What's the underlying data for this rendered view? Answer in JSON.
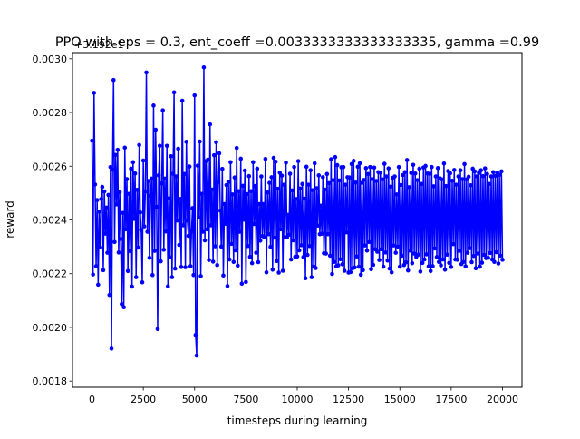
{
  "chart_data": {
    "type": "line",
    "title": "PPO with eps = 0.3, ent_coeff =0.0033333333333333335, gamma =0.99",
    "xlabel": "timesteps during learning",
    "ylabel": "reward",
    "offset_label": "+3.192e1",
    "xlim": [
      -950,
      20950
    ],
    "ylim": [
      0.001777,
      0.003023
    ],
    "xticks": [
      0,
      2500,
      5000,
      7500,
      10000,
      12500,
      15000,
      17500,
      20000
    ],
    "xtick_labels": [
      "0",
      "2500",
      "5000",
      "7500",
      "10000",
      "12500",
      "15000",
      "17500",
      "20000"
    ],
    "yticks": [
      0.0018,
      0.002,
      0.0022,
      0.0024,
      0.0026,
      0.0028,
      0.003
    ],
    "ytick_labels": [
      "0.0018",
      "0.0020",
      "0.0022",
      "0.0024",
      "0.0026",
      "0.0028",
      "0.0030"
    ],
    "grid": false,
    "legend": "none",
    "series": [
      {
        "color": "#0000ff",
        "marker": "circle",
        "x_start": 0,
        "x_step": 50,
        "values": [
          0.002695,
          0.002197,
          0.002873,
          0.002532,
          0.002228,
          0.002474,
          0.002159,
          0.002431,
          0.002298,
          0.002478,
          0.002523,
          0.002213,
          0.002506,
          0.002349,
          0.002446,
          0.002278,
          0.002493,
          0.002121,
          0.002597,
          0.001921,
          0.002587,
          0.002921,
          0.002318,
          0.002642,
          0.002458,
          0.002661,
          0.002279,
          0.002503,
          0.002329,
          0.002087,
          0.002426,
          0.002075,
          0.002669,
          0.002365,
          0.002552,
          0.00221,
          0.002497,
          0.002284,
          0.002591,
          0.002152,
          0.002615,
          0.002404,
          0.002573,
          0.002187,
          0.002512,
          0.002297,
          0.002679,
          0.002428,
          0.002363,
          0.002168,
          0.002621,
          0.002376,
          0.002506,
          0.002949,
          0.002356,
          0.002545,
          0.002259,
          0.00249,
          0.002554,
          0.002195,
          0.002826,
          0.002285,
          0.002736,
          0.002449,
          0.001994,
          0.002566,
          0.002676,
          0.002246,
          0.002536,
          0.002808,
          0.002289,
          0.002554,
          0.002357,
          0.002676,
          0.002153,
          0.00248,
          0.002261,
          0.002637,
          0.002187,
          0.002572,
          0.002875,
          0.002219,
          0.002562,
          0.002398,
          0.002665,
          0.002307,
          0.002478,
          0.002225,
          0.002844,
          0.00238,
          0.002571,
          0.002224,
          0.002691,
          0.002398,
          0.002341,
          0.002599,
          0.002228,
          0.002359,
          0.002444,
          0.002195,
          0.002864,
          0.001972,
          0.001895,
          0.002602,
          0.002409,
          0.002692,
          0.002191,
          0.002497,
          0.002356,
          0.002968,
          0.002324,
          0.002619,
          0.002365,
          0.002625,
          0.002251,
          0.002756,
          0.00238,
          0.002513,
          0.002245,
          0.002641,
          0.002302,
          0.002689,
          0.002232,
          0.002541,
          0.002648,
          0.002435,
          0.002301,
          0.00259,
          0.002193,
          0.002459,
          0.002386,
          0.00253,
          0.002154,
          0.002542,
          0.002253,
          0.002615,
          0.002311,
          0.002495,
          0.002244,
          0.002558,
          0.002287,
          0.002668,
          0.00223,
          0.002507,
          0.002356,
          0.002628,
          0.002163,
          0.002527,
          0.002401,
          0.002584,
          0.002169,
          0.002496,
          0.002303,
          0.002563,
          0.002263,
          0.002507,
          0.002239,
          0.002615,
          0.002385,
          0.002526,
          0.002278,
          0.002591,
          0.002243,
          0.002459,
          0.002323,
          0.002562,
          0.00234,
          0.002459,
          0.002336,
          0.002627,
          0.002205,
          0.002502,
          0.002347,
          0.002538,
          0.0023,
          0.002559,
          0.002215,
          0.002631,
          0.002334,
          0.002617,
          0.002247,
          0.002516,
          0.002204,
          0.002576,
          0.002365,
          0.002565,
          0.002211,
          0.002531,
          0.002336,
          0.002613,
          0.002335,
          0.002419,
          0.002345,
          0.002572,
          0.002253,
          0.00251,
          0.002324,
          0.002597,
          0.002263,
          0.002478,
          0.002264,
          0.002619,
          0.002287,
          0.002517,
          0.002306,
          0.002534,
          0.002262,
          0.002479,
          0.002183,
          0.002598,
          0.00227,
          0.002531,
          0.002303,
          0.002585,
          0.002187,
          0.002511,
          0.002226,
          0.002611,
          0.002221,
          0.002518,
          0.002379,
          0.002566,
          0.002347,
          0.002453,
          0.002349,
          0.002559,
          0.002276,
          0.002513,
          0.002275,
          0.002571,
          0.002347,
          0.002537,
          0.002267,
          0.002626,
          0.002199,
          0.002548,
          0.002244,
          0.002634,
          0.002227,
          0.002604,
          0.002231,
          0.002547,
          0.002254,
          0.002596,
          0.002235,
          0.002597,
          0.002211,
          0.002531,
          0.002354,
          0.002559,
          0.002204,
          0.002558,
          0.002206,
          0.002608,
          0.00222,
          0.00262,
          0.002223,
          0.002539,
          0.002264,
          0.002598,
          0.002226,
          0.002611,
          0.002196,
          0.002538,
          0.002213,
          0.002549,
          0.002305,
          0.002593,
          0.002286,
          0.002571,
          0.002318,
          0.002597,
          0.002217,
          0.002552,
          0.002233,
          0.002595,
          0.002291,
          0.002545,
          0.002282,
          0.002578,
          0.002251,
          0.002576,
          0.002291,
          0.002551,
          0.002226,
          0.002609,
          0.002279,
          0.002562,
          0.002249,
          0.002592,
          0.002219,
          0.002524,
          0.002205,
          0.002557,
          0.002305,
          0.002562,
          0.002278,
          0.002495,
          0.002301,
          0.002597,
          0.002226,
          0.00253,
          0.002267,
          0.002567,
          0.002232,
          0.002578,
          0.002242,
          0.002623,
          0.002212,
          0.002522,
          0.002286,
          0.002575,
          0.002239,
          0.002605,
          0.002275,
          0.002573,
          0.002263,
          0.002548,
          0.002271,
          0.002591,
          0.002208,
          0.002534,
          0.00224,
          0.002595,
          0.002253,
          0.002601,
          0.002272,
          0.002573,
          0.002227,
          0.002572,
          0.00221,
          0.002597,
          0.002228,
          0.002525,
          0.002294,
          0.002562,
          0.002262,
          0.002593,
          0.002244,
          0.002555,
          0.002231,
          0.002551,
          0.002253,
          0.00261,
          0.002215,
          0.002526,
          0.002271,
          0.002582,
          0.00224,
          0.002574,
          0.002225,
          0.002546,
          0.00231,
          0.002586,
          0.002253,
          0.002531,
          0.002252,
          0.002562,
          0.002285,
          0.002585,
          0.002236,
          0.002552,
          0.002244,
          0.002608,
          0.002227,
          0.002551,
          0.002278,
          0.002561,
          0.002295,
          0.002529,
          0.002243,
          0.002591,
          0.002266,
          0.002581,
          0.00222,
          0.002562,
          0.002275,
          0.002575,
          0.002226,
          0.002585,
          0.002241,
          0.002563,
          0.00227,
          0.002592,
          0.002258,
          0.002571,
          0.002259,
          0.002534,
          0.002277,
          0.002562,
          0.002253,
          0.002578,
          0.002244,
          0.002564,
          0.00228,
          0.002576,
          0.002238,
          0.002568,
          0.002267,
          0.002581,
          0.002252
        ]
      }
    ]
  }
}
